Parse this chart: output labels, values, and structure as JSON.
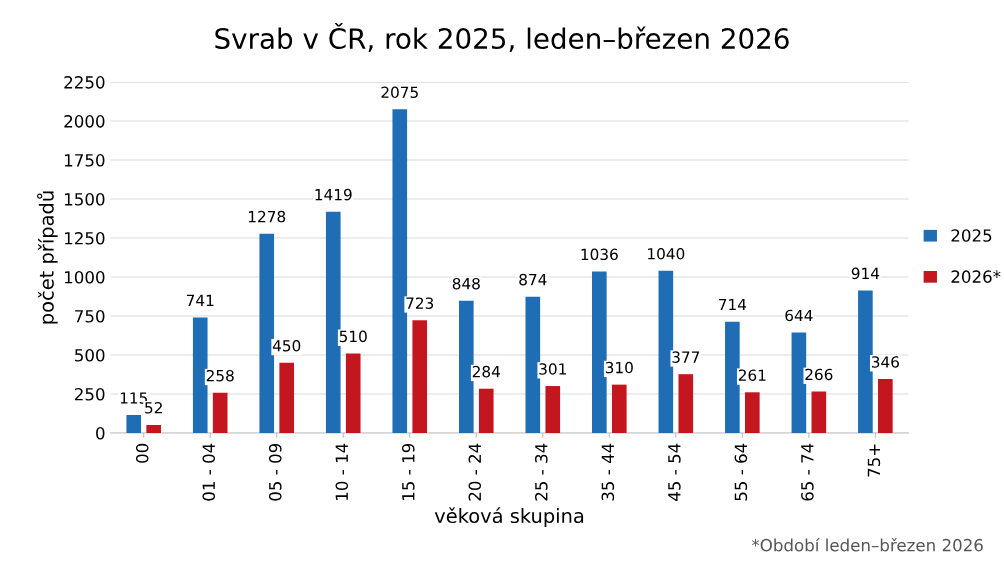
{
  "chart_data": {
    "type": "bar",
    "title": "Svrab v ČR, rok 2025, leden–březen 2026",
    "xlabel": "věková skupina",
    "ylabel": "počet případů",
    "categories": [
      "00",
      "01 - 04",
      "05 - 09",
      "10 - 14",
      "15 - 19",
      "20 - 24",
      "25 - 34",
      "35 - 44",
      "45 - 54",
      "55 - 64",
      "65 - 74",
      "75+"
    ],
    "series": [
      {
        "name": "2025",
        "color": "#1f6db5",
        "values": [
          115,
          741,
          1278,
          1419,
          2075,
          848,
          874,
          1036,
          1040,
          714,
          644,
          914
        ]
      },
      {
        "name": "2026*",
        "color": "#c3161f",
        "values": [
          52,
          258,
          450,
          510,
          723,
          284,
          301,
          310,
          377,
          261,
          266,
          346
        ]
      }
    ],
    "ylim": [
      0,
      2250
    ],
    "yticks": [
      0,
      250,
      500,
      750,
      1000,
      1250,
      1500,
      1750,
      2000,
      2250
    ],
    "grid": "y",
    "legend": "right",
    "data_labels": true,
    "annotations": [
      "*Období leden–březen 2026"
    ]
  }
}
